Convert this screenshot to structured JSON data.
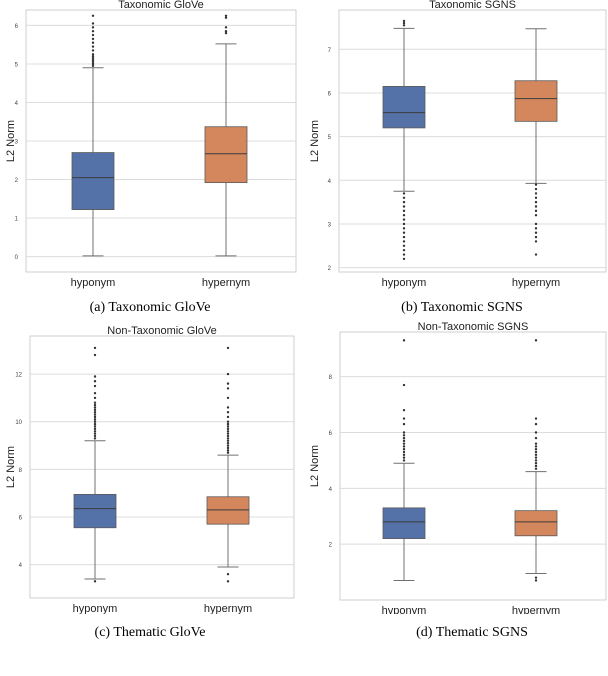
{
  "colors": {
    "hyponym": "#5471a8",
    "hypernym": "#d4875d",
    "grid": "#dcdcdc",
    "frame": "#cfcfcf",
    "whisker": "#707070"
  },
  "chart_data": [
    {
      "type": "box",
      "title": "Taxonomic GloVe",
      "ylabel": "L2 Norm",
      "xlabel": "",
      "ylim": [
        -0.4,
        6.4
      ],
      "yticks": [
        0,
        1,
        2,
        3,
        4,
        5,
        6
      ],
      "categories": [
        "hyponym",
        "hypernym"
      ],
      "boxes": [
        {
          "name": "hyponym",
          "color": "#5471a8",
          "min": 0.02,
          "q1": 1.22,
          "median": 2.05,
          "q3": 2.7,
          "max": 4.9,
          "outliers": [
            4.95,
            5.0,
            5.05,
            5.1,
            5.15,
            5.2,
            5.25,
            5.35,
            5.45,
            5.55,
            5.65,
            5.75,
            5.85,
            5.95,
            6.05,
            6.25
          ]
        },
        {
          "name": "hypernym",
          "color": "#d4875d",
          "min": 0.02,
          "q1": 1.92,
          "median": 2.67,
          "q3": 3.37,
          "max": 5.52,
          "outliers": [
            5.8,
            5.85,
            5.95,
            6.2,
            6.25
          ]
        }
      ],
      "caption": "(a) Taxonomic GloVe"
    },
    {
      "type": "box",
      "title": "Taxonomic SGNS",
      "ylabel": "L2 Norm",
      "xlabel": "",
      "ylim": [
        1.9,
        7.9
      ],
      "yticks": [
        2,
        3,
        4,
        5,
        6,
        7
      ],
      "categories": [
        "hyponym",
        "hypernym"
      ],
      "boxes": [
        {
          "name": "hyponym",
          "color": "#5471a8",
          "min": 3.75,
          "q1": 5.2,
          "median": 5.55,
          "q3": 6.15,
          "max": 7.48,
          "outliers": [
            2.2,
            2.3,
            2.4,
            2.5,
            2.6,
            2.7,
            2.8,
            2.9,
            3.0,
            3.1,
            3.2,
            3.3,
            3.4,
            3.5,
            3.6,
            3.7,
            7.55,
            7.6,
            7.65
          ]
        },
        {
          "name": "hypernym",
          "color": "#d4875d",
          "min": 3.93,
          "q1": 5.35,
          "median": 5.87,
          "q3": 6.28,
          "max": 7.47,
          "outliers": [
            2.3,
            2.6,
            2.7,
            2.8,
            2.9,
            3.0,
            3.2,
            3.3,
            3.4,
            3.5,
            3.6,
            3.7,
            3.8,
            3.9
          ]
        }
      ],
      "caption": "(b) Taxonomic SGNS"
    },
    {
      "type": "box",
      "title": "Non-Taxonomic GloVe",
      "ylabel": "L2 Norm",
      "xlabel": "",
      "ylim": [
        2.6,
        13.6
      ],
      "yticks": [
        4,
        6,
        8,
        10,
        12
      ],
      "categories": [
        "hyponym",
        "hypernym"
      ],
      "boxes": [
        {
          "name": "hyponym",
          "color": "#5471a8",
          "min": 3.4,
          "q1": 5.55,
          "median": 6.35,
          "q3": 6.95,
          "max": 9.2,
          "outliers": [
            3.3,
            9.3,
            9.4,
            9.5,
            9.6,
            9.7,
            9.8,
            9.9,
            10.0,
            10.1,
            10.2,
            10.3,
            10.4,
            10.5,
            10.6,
            10.7,
            10.8,
            11.0,
            11.2,
            11.5,
            11.7,
            11.9,
            12.8,
            13.1
          ]
        },
        {
          "name": "hypernym",
          "color": "#d4875d",
          "min": 3.9,
          "q1": 5.7,
          "median": 6.3,
          "q3": 6.85,
          "max": 8.6,
          "outliers": [
            3.3,
            3.6,
            8.7,
            8.8,
            8.9,
            9.0,
            9.1,
            9.2,
            9.3,
            9.4,
            9.5,
            9.6,
            9.7,
            9.8,
            9.9,
            10.0,
            10.2,
            10.4,
            10.6,
            11.0,
            11.4,
            11.6,
            12.0,
            13.1
          ]
        }
      ],
      "caption": "(c) Thematic GloVe"
    },
    {
      "type": "box",
      "title": "Non-Taxonomic SGNS",
      "ylabel": "L2 Norm",
      "xlabel": "",
      "ylim": [
        0.0,
        9.6
      ],
      "yticks": [
        2,
        4,
        6,
        8
      ],
      "categories": [
        "hyponym",
        "hypernym"
      ],
      "boxes": [
        {
          "name": "hyponym",
          "color": "#5471a8",
          "min": 0.7,
          "q1": 2.2,
          "median": 2.8,
          "q3": 3.3,
          "max": 4.9,
          "outliers": [
            5.0,
            5.1,
            5.2,
            5.3,
            5.4,
            5.5,
            5.6,
            5.7,
            5.8,
            5.9,
            6.0,
            6.3,
            6.5,
            6.8,
            7.7,
            9.3
          ]
        },
        {
          "name": "hypernym",
          "color": "#d4875d",
          "min": 0.95,
          "q1": 2.3,
          "median": 2.8,
          "q3": 3.2,
          "max": 4.6,
          "outliers": [
            0.7,
            0.8,
            4.7,
            4.8,
            4.9,
            5.0,
            5.1,
            5.2,
            5.3,
            5.4,
            5.5,
            5.6,
            5.8,
            6.0,
            6.3,
            6.5,
            9.3
          ]
        }
      ],
      "caption": "(d) Thematic SGNS"
    }
  ]
}
